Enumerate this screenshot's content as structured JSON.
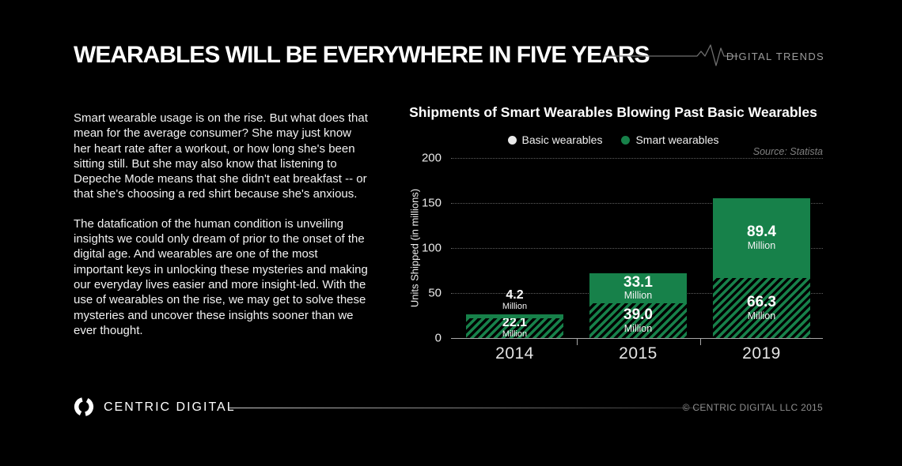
{
  "header": {
    "title": "WEARABLES WILL BE EVERYWHERE IN FIVE YEARS",
    "brand": "DIGITAL TRENDS"
  },
  "intro": {
    "p1": "Smart wearable usage is on the rise. But what does that mean for the average consumer? She may just know her heart rate after a workout, or how long she's been sitting still. But she may also know that listening to Depeche Mode means that she didn't eat breakfast -- or that she's choosing a red shirt because she's anxious.",
    "p2": "The datafication of the human condition is unveiling insights we could only dream of prior to the onset of the digital age. And wearables are one of the most important keys in unlocking these mysteries and making our everyday lives easier and more insight-led. With the use of wearables on the rise, we may get to solve these mysteries and uncover these insights sooner than we ever thought."
  },
  "chart_data": {
    "type": "bar",
    "stacked": true,
    "title": "Shipments of Smart Wearables Blowing Past Basic Wearables",
    "source": "Source: Statista",
    "categories": [
      "2014",
      "2015",
      "2019"
    ],
    "series": [
      {
        "name": "Basic wearables",
        "values": [
          22.1,
          39.0,
          66.3
        ],
        "unit": "Million",
        "bar_style": "hatched",
        "color": "#17814a",
        "legend_color": "#e9e9e9"
      },
      {
        "name": "Smart wearables",
        "values": [
          4.2,
          33.1,
          89.4
        ],
        "unit": "Million",
        "bar_style": "solid",
        "color": "#17814a",
        "legend_color": "#17814a"
      }
    ],
    "xlabel": "",
    "ylabel": "Units Shipped (in millions)",
    "ylim": [
      0,
      200
    ],
    "yticks": [
      0,
      50,
      100,
      150,
      200
    ],
    "grid": "dotted-horizontal",
    "legend_position": "top-center"
  },
  "footer": {
    "brand": "CENTRIC DIGITAL",
    "copyright": "© CENTRIC DIGITAL LLC 2015"
  },
  "colors": {
    "background": "#000000",
    "accent_green": "#17814a",
    "text_primary": "#ffffff",
    "text_muted": "#8f8f8f"
  }
}
